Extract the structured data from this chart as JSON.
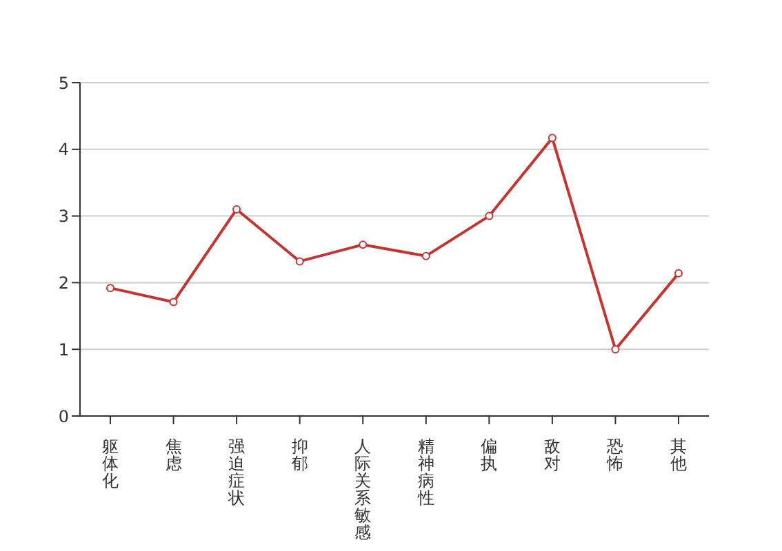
{
  "chart_data": {
    "type": "line",
    "categories": [
      "躯体化",
      "焦虑",
      "强迫症状",
      "抑郁",
      "人际关系敏感",
      "精神病性",
      "偏执",
      "敌对",
      "恐怖",
      "其他"
    ],
    "series": [
      {
        "color": "#c23531",
        "values": [
          1.92,
          1.71,
          3.1,
          2.32,
          2.57,
          2.4,
          3.0,
          4.17,
          1.0,
          2.14
        ]
      }
    ],
    "ylim": [
      0,
      5
    ],
    "yticks": [
      0,
      1,
      2,
      3,
      4,
      5
    ],
    "grid": "y",
    "marker": "circle",
    "line_style": "solid"
  }
}
